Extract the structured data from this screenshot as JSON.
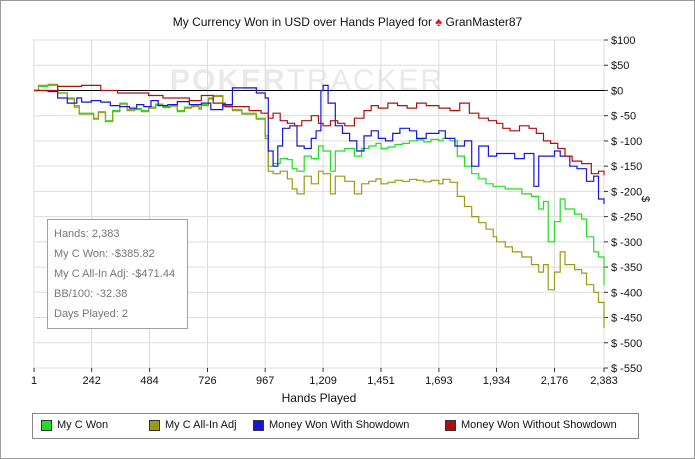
{
  "title": {
    "prefix": "My Currency Won in USD over Hands Played for",
    "player": "GranMaster87",
    "icon": "spade-icon",
    "icon_color": "#d42020"
  },
  "watermark": {
    "bold": "POKER",
    "light": "TRACKER"
  },
  "stats": {
    "hands": "Hands: 2,383",
    "won": "My C Won: -$385.82",
    "allin": "My C All-In Adj: -$471.44",
    "bb100": "BB/100: -32.38",
    "days": "Days Played: 2"
  },
  "chart_data": {
    "type": "line",
    "xlabel": "Hands Played",
    "ylabel": "$",
    "xlim": [
      1,
      2383
    ],
    "ylim": [
      -550,
      100
    ],
    "x_ticks": [
      1,
      242,
      484,
      726,
      967,
      1209,
      1451,
      1693,
      1934,
      2176,
      2383
    ],
    "x_tick_labels": [
      "1",
      "242",
      "484",
      "726",
      "967",
      "1,209",
      "1,451",
      "1,693",
      "1,934",
      "2,176",
      "2,383"
    ],
    "y_ticks": [
      100,
      50,
      0,
      -50,
      -100,
      -150,
      -200,
      -250,
      -300,
      -350,
      -400,
      -450,
      -500,
      -550
    ],
    "y_tick_labels": [
      "$100",
      "$50",
      "$0",
      "$ -50",
      "$ -100",
      "$ -150",
      "$ -200",
      "$ -250",
      "$ -300",
      "$ -350",
      "$ -400",
      "$ -450",
      "$ -500",
      "$ -550"
    ],
    "grid": true,
    "legend_position": "bottom",
    "series": [
      {
        "name": "My C Won",
        "color": "#22dd22",
        "points": [
          [
            1,
            0
          ],
          [
            20,
            8
          ],
          [
            60,
            10
          ],
          [
            100,
            -5
          ],
          [
            140,
            -15
          ],
          [
            170,
            -30
          ],
          [
            190,
            -45
          ],
          [
            220,
            -45
          ],
          [
            250,
            -55
          ],
          [
            270,
            -42
          ],
          [
            300,
            -60
          ],
          [
            330,
            -40
          ],
          [
            360,
            -25
          ],
          [
            390,
            -38
          ],
          [
            420,
            -36
          ],
          [
            450,
            -40
          ],
          [
            480,
            -33
          ],
          [
            510,
            -27
          ],
          [
            540,
            -32
          ],
          [
            570,
            -29
          ],
          [
            600,
            -40
          ],
          [
            630,
            -33
          ],
          [
            660,
            -30
          ],
          [
            690,
            -35
          ],
          [
            700,
            -28
          ],
          [
            730,
            -15
          ],
          [
            750,
            -10
          ],
          [
            790,
            -30
          ],
          [
            830,
            -38
          ],
          [
            870,
            -45
          ],
          [
            930,
            -55
          ],
          [
            967,
            -90
          ],
          [
            980,
            -150
          ],
          [
            1000,
            -145
          ],
          [
            1030,
            -135
          ],
          [
            1060,
            -137
          ],
          [
            1080,
            -155
          ],
          [
            1100,
            -160
          ],
          [
            1130,
            -130
          ],
          [
            1160,
            -135
          ],
          [
            1190,
            -110
          ],
          [
            1209,
            -120
          ],
          [
            1240,
            -160
          ],
          [
            1260,
            -120
          ],
          [
            1300,
            -115
          ],
          [
            1340,
            -130
          ],
          [
            1370,
            -115
          ],
          [
            1400,
            -110
          ],
          [
            1430,
            -105
          ],
          [
            1451,
            -115
          ],
          [
            1480,
            -112
          ],
          [
            1510,
            -107
          ],
          [
            1540,
            -105
          ],
          [
            1570,
            -100
          ],
          [
            1600,
            -98
          ],
          [
            1630,
            -102
          ],
          [
            1660,
            -97
          ],
          [
            1693,
            -100
          ],
          [
            1710,
            -95
          ],
          [
            1740,
            -100
          ],
          [
            1770,
            -130
          ],
          [
            1800,
            -150
          ],
          [
            1830,
            -165
          ],
          [
            1860,
            -175
          ],
          [
            1890,
            -185
          ],
          [
            1920,
            -190
          ],
          [
            1934,
            -190
          ],
          [
            1970,
            -195
          ],
          [
            2000,
            -195
          ],
          [
            2040,
            -205
          ],
          [
            2080,
            -210
          ],
          [
            2110,
            -235
          ],
          [
            2130,
            -220
          ],
          [
            2150,
            -300
          ],
          [
            2176,
            -260
          ],
          [
            2200,
            -215
          ],
          [
            2220,
            -235
          ],
          [
            2260,
            -245
          ],
          [
            2290,
            -255
          ],
          [
            2310,
            -290
          ],
          [
            2340,
            -320
          ],
          [
            2360,
            -330
          ],
          [
            2383,
            -386
          ]
        ]
      },
      {
        "name": "My C All-In Adj",
        "color": "#9a9a1a",
        "points": [
          [
            1,
            0
          ],
          [
            20,
            10
          ],
          [
            60,
            12
          ],
          [
            100,
            -5
          ],
          [
            140,
            -17
          ],
          [
            170,
            -33
          ],
          [
            190,
            -47
          ],
          [
            220,
            -47
          ],
          [
            250,
            -57
          ],
          [
            270,
            -44
          ],
          [
            300,
            -62
          ],
          [
            330,
            -42
          ],
          [
            360,
            -27
          ],
          [
            390,
            -40
          ],
          [
            420,
            -38
          ],
          [
            450,
            -42
          ],
          [
            480,
            -35
          ],
          [
            510,
            -29
          ],
          [
            540,
            -34
          ],
          [
            570,
            -31
          ],
          [
            600,
            -42
          ],
          [
            630,
            -35
          ],
          [
            660,
            -32
          ],
          [
            690,
            -37
          ],
          [
            700,
            -30
          ],
          [
            730,
            -17
          ],
          [
            750,
            -12
          ],
          [
            790,
            -32
          ],
          [
            830,
            -40
          ],
          [
            870,
            -47
          ],
          [
            930,
            -57
          ],
          [
            967,
            -95
          ],
          [
            980,
            -160
          ],
          [
            1000,
            -165
          ],
          [
            1030,
            -160
          ],
          [
            1060,
            -175
          ],
          [
            1080,
            -195
          ],
          [
            1100,
            -205
          ],
          [
            1130,
            -170
          ],
          [
            1160,
            -185
          ],
          [
            1190,
            -160
          ],
          [
            1209,
            -165
          ],
          [
            1240,
            -205
          ],
          [
            1260,
            -170
          ],
          [
            1300,
            -180
          ],
          [
            1340,
            -205
          ],
          [
            1370,
            -185
          ],
          [
            1400,
            -180
          ],
          [
            1430,
            -175
          ],
          [
            1451,
            -185
          ],
          [
            1480,
            -182
          ],
          [
            1510,
            -178
          ],
          [
            1540,
            -180
          ],
          [
            1570,
            -176
          ],
          [
            1600,
            -178
          ],
          [
            1630,
            -181
          ],
          [
            1660,
            -178
          ],
          [
            1693,
            -185
          ],
          [
            1710,
            -176
          ],
          [
            1740,
            -182
          ],
          [
            1770,
            -210
          ],
          [
            1800,
            -230
          ],
          [
            1830,
            -250
          ],
          [
            1860,
            -262
          ],
          [
            1890,
            -275
          ],
          [
            1920,
            -290
          ],
          [
            1934,
            -300
          ],
          [
            1970,
            -310
          ],
          [
            2000,
            -320
          ],
          [
            2040,
            -330
          ],
          [
            2080,
            -345
          ],
          [
            2110,
            -360
          ],
          [
            2130,
            -345
          ],
          [
            2150,
            -395
          ],
          [
            2176,
            -360
          ],
          [
            2200,
            -320
          ],
          [
            2220,
            -345
          ],
          [
            2260,
            -355
          ],
          [
            2290,
            -362
          ],
          [
            2310,
            -385
          ],
          [
            2340,
            -400
          ],
          [
            2360,
            -420
          ],
          [
            2383,
            -471
          ]
        ]
      },
      {
        "name": "Money Won With Showdown",
        "color": "#1515dd",
        "points": [
          [
            1,
            0
          ],
          [
            60,
            -2
          ],
          [
            100,
            -15
          ],
          [
            140,
            -25
          ],
          [
            180,
            -15
          ],
          [
            200,
            -23
          ],
          [
            240,
            -20
          ],
          [
            280,
            -23
          ],
          [
            320,
            -30
          ],
          [
            360,
            -32
          ],
          [
            400,
            -35
          ],
          [
            430,
            -28
          ],
          [
            460,
            -32
          ],
          [
            490,
            -20
          ],
          [
            520,
            -30
          ],
          [
            560,
            -28
          ],
          [
            600,
            -22
          ],
          [
            650,
            -28
          ],
          [
            700,
            -25
          ],
          [
            740,
            -38
          ],
          [
            790,
            -28
          ],
          [
            830,
            5
          ],
          [
            880,
            5
          ],
          [
            930,
            -5
          ],
          [
            967,
            -15
          ],
          [
            980,
            -120
          ],
          [
            1000,
            -150
          ],
          [
            1020,
            -110
          ],
          [
            1040,
            -75
          ],
          [
            1070,
            -70
          ],
          [
            1100,
            -110
          ],
          [
            1130,
            -115
          ],
          [
            1160,
            -95
          ],
          [
            1180,
            -80
          ],
          [
            1200,
            0
          ],
          [
            1209,
            10
          ],
          [
            1230,
            -25
          ],
          [
            1260,
            -70
          ],
          [
            1290,
            -85
          ],
          [
            1320,
            -100
          ],
          [
            1350,
            -120
          ],
          [
            1380,
            -90
          ],
          [
            1410,
            -80
          ],
          [
            1440,
            -95
          ],
          [
            1470,
            -100
          ],
          [
            1500,
            -85
          ],
          [
            1530,
            -75
          ],
          [
            1570,
            -80
          ],
          [
            1600,
            -95
          ],
          [
            1640,
            -85
          ],
          [
            1693,
            -80
          ],
          [
            1720,
            -95
          ],
          [
            1760,
            -110
          ],
          [
            1800,
            -100
          ],
          [
            1830,
            -150
          ],
          [
            1860,
            -110
          ],
          [
            1900,
            -130
          ],
          [
            1934,
            -125
          ],
          [
            1970,
            -125
          ],
          [
            2010,
            -135
          ],
          [
            2050,
            -125
          ],
          [
            2090,
            -190
          ],
          [
            2110,
            -130
          ],
          [
            2150,
            -130
          ],
          [
            2176,
            -120
          ],
          [
            2200,
            -130
          ],
          [
            2240,
            -150
          ],
          [
            2270,
            -155
          ],
          [
            2310,
            -180
          ],
          [
            2340,
            -170
          ],
          [
            2360,
            -215
          ],
          [
            2383,
            -225
          ]
        ]
      },
      {
        "name": "Money Won Without Showdown",
        "color": "#aa1010",
        "points": [
          [
            1,
            0
          ],
          [
            100,
            8
          ],
          [
            200,
            10
          ],
          [
            280,
            0
          ],
          [
            350,
            -5
          ],
          [
            420,
            -5
          ],
          [
            480,
            -10
          ],
          [
            540,
            -15
          ],
          [
            600,
            -15
          ],
          [
            650,
            -20
          ],
          [
            700,
            -10
          ],
          [
            750,
            -25
          ],
          [
            800,
            -32
          ],
          [
            850,
            -32
          ],
          [
            900,
            -40
          ],
          [
            950,
            -45
          ],
          [
            980,
            -55
          ],
          [
            1000,
            -45
          ],
          [
            1030,
            -60
          ],
          [
            1060,
            -65
          ],
          [
            1090,
            -70
          ],
          [
            1120,
            -60
          ],
          [
            1160,
            -50
          ],
          [
            1190,
            -65
          ],
          [
            1209,
            -70
          ],
          [
            1240,
            -60
          ],
          [
            1270,
            -65
          ],
          [
            1300,
            -70
          ],
          [
            1340,
            -55
          ],
          [
            1380,
            -40
          ],
          [
            1410,
            -30
          ],
          [
            1440,
            -35
          ],
          [
            1480,
            -25
          ],
          [
            1520,
            -30
          ],
          [
            1560,
            -35
          ],
          [
            1600,
            -25
          ],
          [
            1640,
            -30
          ],
          [
            1693,
            -35
          ],
          [
            1740,
            -40
          ],
          [
            1780,
            -25
          ],
          [
            1820,
            -45
          ],
          [
            1860,
            -55
          ],
          [
            1900,
            -60
          ],
          [
            1934,
            -65
          ],
          [
            1960,
            -75
          ],
          [
            1990,
            -80
          ],
          [
            2030,
            -70
          ],
          [
            2070,
            -75
          ],
          [
            2100,
            -85
          ],
          [
            2130,
            -100
          ],
          [
            2160,
            -105
          ],
          [
            2190,
            -115
          ],
          [
            2220,
            -130
          ],
          [
            2250,
            -140
          ],
          [
            2290,
            -145
          ],
          [
            2330,
            -165
          ],
          [
            2360,
            -160
          ],
          [
            2383,
            -168
          ]
        ]
      }
    ]
  }
}
